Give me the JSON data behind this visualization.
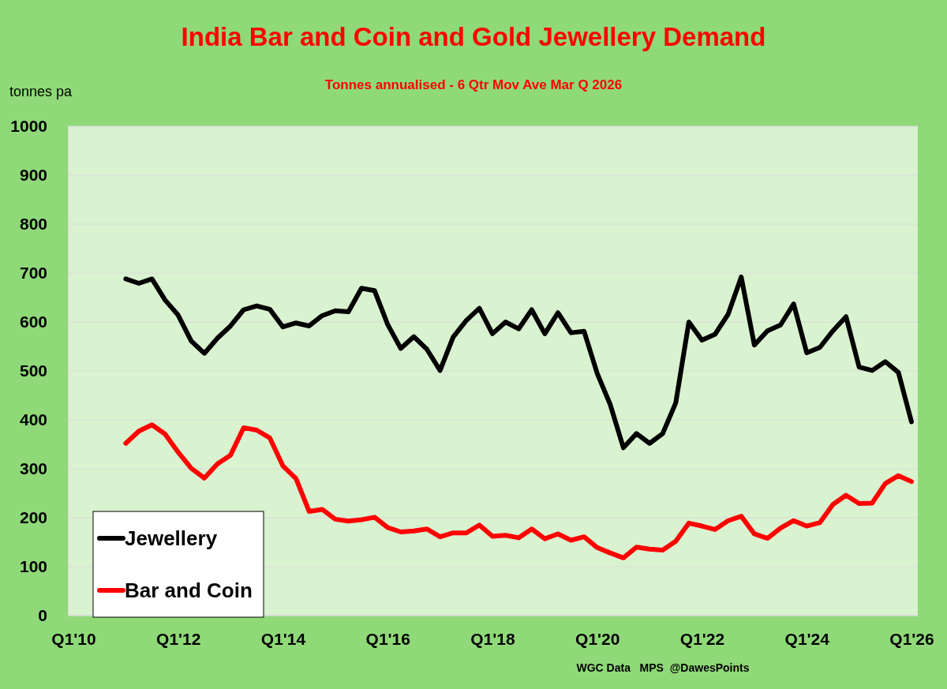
{
  "chart_data": {
    "type": "line",
    "title": "India Bar and Coin and Gold Jewellery Demand",
    "subtitle": "Tonnes annualised - 6 Qtr Mov Ave Mar Q 2026",
    "ylabel": "tonnes pa",
    "annotations": [
      "WGC Data   MPS  @DawesPoints"
    ],
    "categories": [
      "Q1'10",
      null,
      null,
      null,
      null,
      null,
      null,
      null,
      "Q1'12",
      null,
      null,
      null,
      null,
      null,
      null,
      null,
      "Q1'14",
      null,
      null,
      null,
      null,
      null,
      null,
      null,
      "Q1'16",
      null,
      null,
      null,
      null,
      null,
      null,
      null,
      "Q1'18",
      null,
      null,
      null,
      null,
      null,
      null,
      null,
      "Q1'20",
      null,
      null,
      null,
      null,
      null,
      null,
      null,
      "Q1'22",
      null,
      null,
      null,
      null,
      null,
      null,
      null,
      "Q1'24",
      null,
      null,
      null,
      null,
      null,
      null,
      null,
      "Q1'26"
    ],
    "series": [
      {
        "name": "Jewellery",
        "color": "#000000",
        "values": [
          null,
          null,
          null,
          null,
          688,
          679,
          688,
          645,
          614,
          561,
          536,
          567,
          592,
          625,
          633,
          626,
          590,
          598,
          592,
          613,
          623,
          621,
          669,
          664,
          595,
          546,
          570,
          544,
          501,
          569,
          603,
          628,
          576,
          600,
          586,
          625,
          576,
          619,
          578,
          581,
          495,
          431,
          343,
          372,
          352,
          372,
          435,
          600,
          563,
          575,
          616,
          692,
          553,
          582,
          594,
          637,
          537,
          548,
          582,
          611,
          508,
          501,
          519,
          497,
          396
        ]
      },
      {
        "name": "Bar and Coin",
        "color": "#ff0000",
        "values": [
          null,
          null,
          null,
          null,
          352,
          377,
          390,
          371,
          334,
          301,
          281,
          310,
          328,
          384,
          379,
          363,
          306,
          280,
          213,
          217,
          197,
          193,
          196,
          201,
          180,
          171,
          173,
          177,
          161,
          169,
          169,
          185,
          162,
          164,
          159,
          177,
          157,
          167,
          154,
          161,
          139,
          128,
          118,
          140,
          136,
          134,
          152,
          189,
          183,
          176,
          194,
          203,
          167,
          158,
          179,
          194,
          183,
          190,
          227,
          246,
          229,
          230,
          270,
          286,
          274
        ]
      }
    ],
    "ylim": [
      0,
      1000
    ],
    "yticks": [
      0,
      100,
      200,
      300,
      400,
      500,
      600,
      700,
      800,
      900,
      1000
    ],
    "grid": "y",
    "legend": "bottom left",
    "marker": "none",
    "line_style": "solid"
  }
}
